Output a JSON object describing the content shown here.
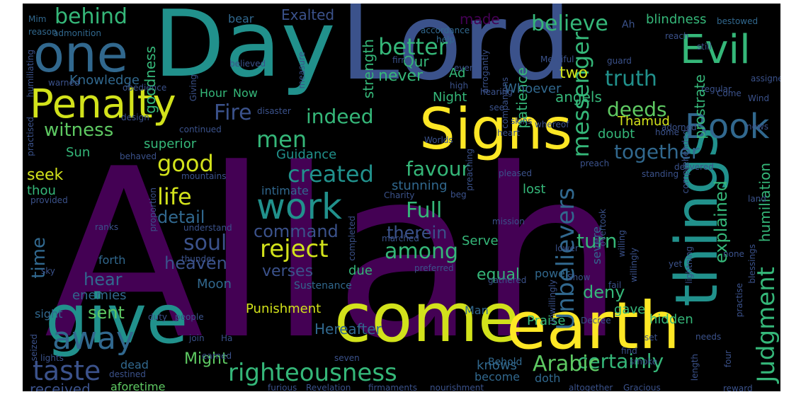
{
  "palette": {
    "background": "#000000",
    "purple": "#440154",
    "indigo": "#3b528b",
    "teal": "#21918c",
    "green": "#5ec962",
    "yellow": "#fde725"
  },
  "words": [
    {
      "text": "Allah",
      "color": "#440154"
    },
    {
      "text": "Lord",
      "color": "#3b528b"
    },
    {
      "text": "Day",
      "color": "#21918c"
    },
    {
      "text": "Signs",
      "color": "#fde725"
    },
    {
      "text": "give",
      "color": "#21918c"
    },
    {
      "text": "come",
      "color": "#d2e21b"
    },
    {
      "text": "earth",
      "color": "#fde725"
    },
    {
      "text": "things",
      "color": "#21918c"
    },
    {
      "text": "one",
      "color": "#31688e"
    },
    {
      "text": "Evil",
      "color": "#35b779"
    },
    {
      "text": "Penalty",
      "color": "#d2e21b"
    },
    {
      "text": "Book",
      "color": "#31688e"
    },
    {
      "text": "work",
      "color": "#21918c"
    },
    {
      "text": "righteousness",
      "color": "#35b779"
    },
    {
      "text": "away",
      "color": "#31688e"
    },
    {
      "text": "taste",
      "color": "#3b528b"
    },
    {
      "text": "Unbelievers",
      "color": "#31688e"
    },
    {
      "text": "Judgment",
      "color": "#35b779"
    },
    {
      "text": "reject",
      "color": "#d2e21b"
    },
    {
      "text": "created",
      "color": "#21918c"
    },
    {
      "text": "truth",
      "color": "#21918c"
    },
    {
      "text": "messenger",
      "color": "#35b779"
    },
    {
      "text": "believe",
      "color": "#35b779"
    },
    {
      "text": "behind",
      "color": "#35b779"
    },
    {
      "text": "better",
      "color": "#35b779"
    },
    {
      "text": "Exalted",
      "color": "#3b528b"
    },
    {
      "text": "Fire",
      "color": "#3b528b"
    },
    {
      "text": "indeed",
      "color": "#35b779"
    },
    {
      "text": "witness",
      "color": "#5ec962"
    },
    {
      "text": "men",
      "color": "#35b779"
    },
    {
      "text": "life",
      "color": "#d2e21b"
    },
    {
      "text": "good",
      "color": "#d2e21b"
    },
    {
      "text": "favour",
      "color": "#35b779"
    },
    {
      "text": "together",
      "color": "#31688e"
    },
    {
      "text": "deeds",
      "color": "#5ec962"
    },
    {
      "text": "soul",
      "color": "#3b528b"
    },
    {
      "text": "among",
      "color": "#35b779"
    },
    {
      "text": "Full",
      "color": "#35b779"
    },
    {
      "text": "turn",
      "color": "#35b779"
    },
    {
      "text": "explained",
      "color": "#35b779"
    },
    {
      "text": "certainly",
      "color": "#35b779"
    },
    {
      "text": "Arabic",
      "color": "#5ec962"
    },
    {
      "text": "time",
      "color": "#31688e"
    },
    {
      "text": "detail",
      "color": "#31688e"
    },
    {
      "text": "command",
      "color": "#3b528b"
    },
    {
      "text": "therein",
      "color": "#3b528b"
    },
    {
      "text": "heaven",
      "color": "#3b528b"
    },
    {
      "text": "verses",
      "color": "#3b528b"
    },
    {
      "text": "hear",
      "color": "#31688e"
    },
    {
      "text": "sent",
      "color": "#5ec962"
    },
    {
      "text": "two",
      "color": "#d2e21b"
    },
    {
      "text": "never",
      "color": "#35b779"
    },
    {
      "text": "goodness",
      "color": "#35b779"
    },
    {
      "text": "strength",
      "color": "#35b779"
    },
    {
      "text": "patience",
      "color": "#35b779"
    },
    {
      "text": "prostrate",
      "color": "#35b779"
    },
    {
      "text": "humiliation",
      "color": "#35b779"
    },
    {
      "text": "angels",
      "color": "#35b779"
    },
    {
      "text": "deny",
      "color": "#35b779"
    },
    {
      "text": "Hereafter",
      "color": "#31688e"
    },
    {
      "text": "Might",
      "color": "#5ec962"
    },
    {
      "text": "received",
      "color": "#3b528b"
    },
    {
      "text": "knows",
      "color": "#31688e"
    },
    {
      "text": "Punishment",
      "color": "#d2e21b"
    },
    {
      "text": "Qur",
      "color": "#35b779"
    },
    {
      "text": "made",
      "color": "#440154"
    },
    {
      "text": "Knowledge",
      "color": "#31688e"
    },
    {
      "text": "Whoever",
      "color": "#31688e"
    },
    {
      "text": "Thamud",
      "color": "#d2e21b"
    },
    {
      "text": "superior",
      "color": "#35b779"
    },
    {
      "text": "seek",
      "color": "#d2e21b"
    },
    {
      "text": "Guidance",
      "color": "#21918c"
    },
    {
      "text": "Sun",
      "color": "#35b779"
    },
    {
      "text": "lost",
      "color": "#35b779"
    },
    {
      "text": "Serve",
      "color": "#35b779"
    },
    {
      "text": "due",
      "color": "#35b779"
    },
    {
      "text": "equal",
      "color": "#35b779"
    },
    {
      "text": "enemies",
      "color": "#31688e"
    },
    {
      "text": "Moon",
      "color": "#31688e"
    },
    {
      "text": "Praise",
      "color": "#35b779"
    },
    {
      "text": "gave",
      "color": "#35b779"
    },
    {
      "text": "hidden",
      "color": "#35b779"
    },
    {
      "text": "blindness",
      "color": "#35b779"
    },
    {
      "text": "doubt",
      "color": "#35b779"
    },
    {
      "text": "Night",
      "color": "#35b779"
    },
    {
      "text": "Hour",
      "color": "#35b779"
    },
    {
      "text": "Now",
      "color": "#35b779"
    },
    {
      "text": "Ad",
      "color": "#35b779"
    },
    {
      "text": "bear",
      "color": "#31688e"
    },
    {
      "text": "thou",
      "color": "#35b779"
    },
    {
      "text": "intimate",
      "color": "#31688e"
    },
    {
      "text": "stunning",
      "color": "#31688e"
    },
    {
      "text": "forth",
      "color": "#31688e"
    },
    {
      "text": "sight",
      "color": "#31688e"
    },
    {
      "text": "Sustenance",
      "color": "#31688e"
    },
    {
      "text": "severe",
      "color": "#31688e"
    },
    {
      "text": "power",
      "color": "#31688e"
    },
    {
      "text": "Man",
      "color": "#31688e"
    },
    {
      "text": "become",
      "color": "#31688e"
    },
    {
      "text": "doth",
      "color": "#31688e"
    },
    {
      "text": "dead",
      "color": "#31688e"
    },
    {
      "text": "aforetime",
      "color": "#5ec962"
    },
    {
      "text": "Behold",
      "color": "#31688e"
    },
    {
      "text": "bestowed",
      "color": "#31688e"
    },
    {
      "text": "Mim",
      "color": "#31688e"
    },
    {
      "text": "reason",
      "color": "#31688e"
    },
    {
      "text": "admonition",
      "color": "#31688e"
    },
    {
      "text": "Giving",
      "color": "#3b528b"
    },
    {
      "text": "accordance",
      "color": "#31688e"
    },
    {
      "text": "help",
      "color": "#31688e"
    },
    {
      "text": "believed",
      "color": "#3b528b"
    },
    {
      "text": "measure",
      "color": "#3b528b"
    },
    {
      "text": "arrogantly",
      "color": "#3b528b"
    },
    {
      "text": "companions",
      "color": "#3b528b"
    },
    {
      "text": "Merciful",
      "color": "#3b528b"
    },
    {
      "text": "guard",
      "color": "#3b528b"
    },
    {
      "text": "assigned",
      "color": "#3b528b"
    },
    {
      "text": "reach",
      "color": "#3b528b"
    },
    {
      "text": "still",
      "color": "#3b528b"
    },
    {
      "text": "Ah",
      "color": "#3b528b"
    },
    {
      "text": "Wind",
      "color": "#3b528b"
    },
    {
      "text": "regular",
      "color": "#3b528b"
    },
    {
      "text": "news",
      "color": "#3b528b"
    },
    {
      "text": "firm",
      "color": "#3b528b"
    },
    {
      "text": "even",
      "color": "#3b528b"
    },
    {
      "text": "high",
      "color": "#3b528b"
    },
    {
      "text": "hearing",
      "color": "#3b528b"
    },
    {
      "text": "see",
      "color": "#3b528b"
    },
    {
      "text": "humiliating",
      "color": "#3b528b"
    },
    {
      "text": "warned",
      "color": "#3b528b"
    },
    {
      "text": "obedience",
      "color": "#3b528b"
    },
    {
      "text": "disaster",
      "color": "#3b528b"
    },
    {
      "text": "continued",
      "color": "#3b528b"
    },
    {
      "text": "skins",
      "color": "#3b528b"
    },
    {
      "text": "heart",
      "color": "#3b528b"
    },
    {
      "text": "whereof",
      "color": "#3b528b"
    },
    {
      "text": "adorned",
      "color": "#3b528b"
    },
    {
      "text": "home",
      "color": "#3b528b"
    },
    {
      "text": "comprehended",
      "color": "#3b528b"
    },
    {
      "text": "practised",
      "color": "#3b528b"
    },
    {
      "text": "design",
      "color": "#3b528b"
    },
    {
      "text": "behaved",
      "color": "#3b528b"
    },
    {
      "text": "Worlds",
      "color": "#3b528b"
    },
    {
      "text": "preaching",
      "color": "#3b528b"
    },
    {
      "text": "mountains",
      "color": "#3b528b"
    },
    {
      "text": "preach",
      "color": "#3b528b"
    },
    {
      "text": "delivered",
      "color": "#3b528b"
    },
    {
      "text": "standing",
      "color": "#3b528b"
    },
    {
      "text": "pleased",
      "color": "#3b528b"
    },
    {
      "text": "Charity",
      "color": "#3b528b"
    },
    {
      "text": "beg",
      "color": "#3b528b"
    },
    {
      "text": "land",
      "color": "#3b528b"
    },
    {
      "text": "provided",
      "color": "#3b528b"
    },
    {
      "text": "proportion",
      "color": "#3b528b"
    },
    {
      "text": "ranks",
      "color": "#3b528b"
    },
    {
      "text": "mission",
      "color": "#3b528b"
    },
    {
      "text": "completed",
      "color": "#3b528b"
    },
    {
      "text": "understand",
      "color": "#3b528b"
    },
    {
      "text": "overtook",
      "color": "#3b528b"
    },
    {
      "text": "willing",
      "color": "#3b528b"
    },
    {
      "text": "blessings",
      "color": "#3b528b"
    },
    {
      "text": "marched",
      "color": "#3b528b"
    },
    {
      "text": "thunder",
      "color": "#3b528b"
    },
    {
      "text": "sky",
      "color": "#3b528b"
    },
    {
      "text": "lower",
      "color": "#3b528b"
    },
    {
      "text": "lightning",
      "color": "#3b528b"
    },
    {
      "text": "none",
      "color": "#3b528b"
    },
    {
      "text": "willingly",
      "color": "#3b528b"
    },
    {
      "text": "Show",
      "color": "#3b528b"
    },
    {
      "text": "practise",
      "color": "#3b528b"
    },
    {
      "text": "preferred",
      "color": "#3b528b"
    },
    {
      "text": "gathered",
      "color": "#3b528b"
    },
    {
      "text": "yet",
      "color": "#3b528b"
    },
    {
      "text": "fail",
      "color": "#3b528b"
    },
    {
      "text": "unwillingly",
      "color": "#3b528b"
    },
    {
      "text": "duty",
      "color": "#3b528b"
    },
    {
      "text": "people",
      "color": "#3b528b"
    },
    {
      "text": "Decree",
      "color": "#3b528b"
    },
    {
      "text": "set",
      "color": "#3b528b"
    },
    {
      "text": "needs",
      "color": "#3b528b"
    },
    {
      "text": "join",
      "color": "#3b528b"
    },
    {
      "text": "Ha",
      "color": "#3b528b"
    },
    {
      "text": "seized",
      "color": "#3b528b"
    },
    {
      "text": "lights",
      "color": "#3b528b"
    },
    {
      "text": "earned",
      "color": "#3b528b"
    },
    {
      "text": "find",
      "color": "#3b528b"
    },
    {
      "text": "smoke",
      "color": "#3b528b"
    },
    {
      "text": "four",
      "color": "#3b528b"
    },
    {
      "text": "seven",
      "color": "#3b528b"
    },
    {
      "text": "destined",
      "color": "#3b528b"
    },
    {
      "text": "length",
      "color": "#3b528b"
    },
    {
      "text": "furious",
      "color": "#3b528b"
    },
    {
      "text": "Revelation",
      "color": "#3b528b"
    },
    {
      "text": "firmaments",
      "color": "#3b528b"
    },
    {
      "text": "nourishment",
      "color": "#3b528b"
    },
    {
      "text": "altogether",
      "color": "#3b528b"
    },
    {
      "text": "Gracious",
      "color": "#3b528b"
    },
    {
      "text": "reward",
      "color": "#3b528b"
    },
    {
      "text": "Come",
      "color": "#3b528b"
    }
  ]
}
